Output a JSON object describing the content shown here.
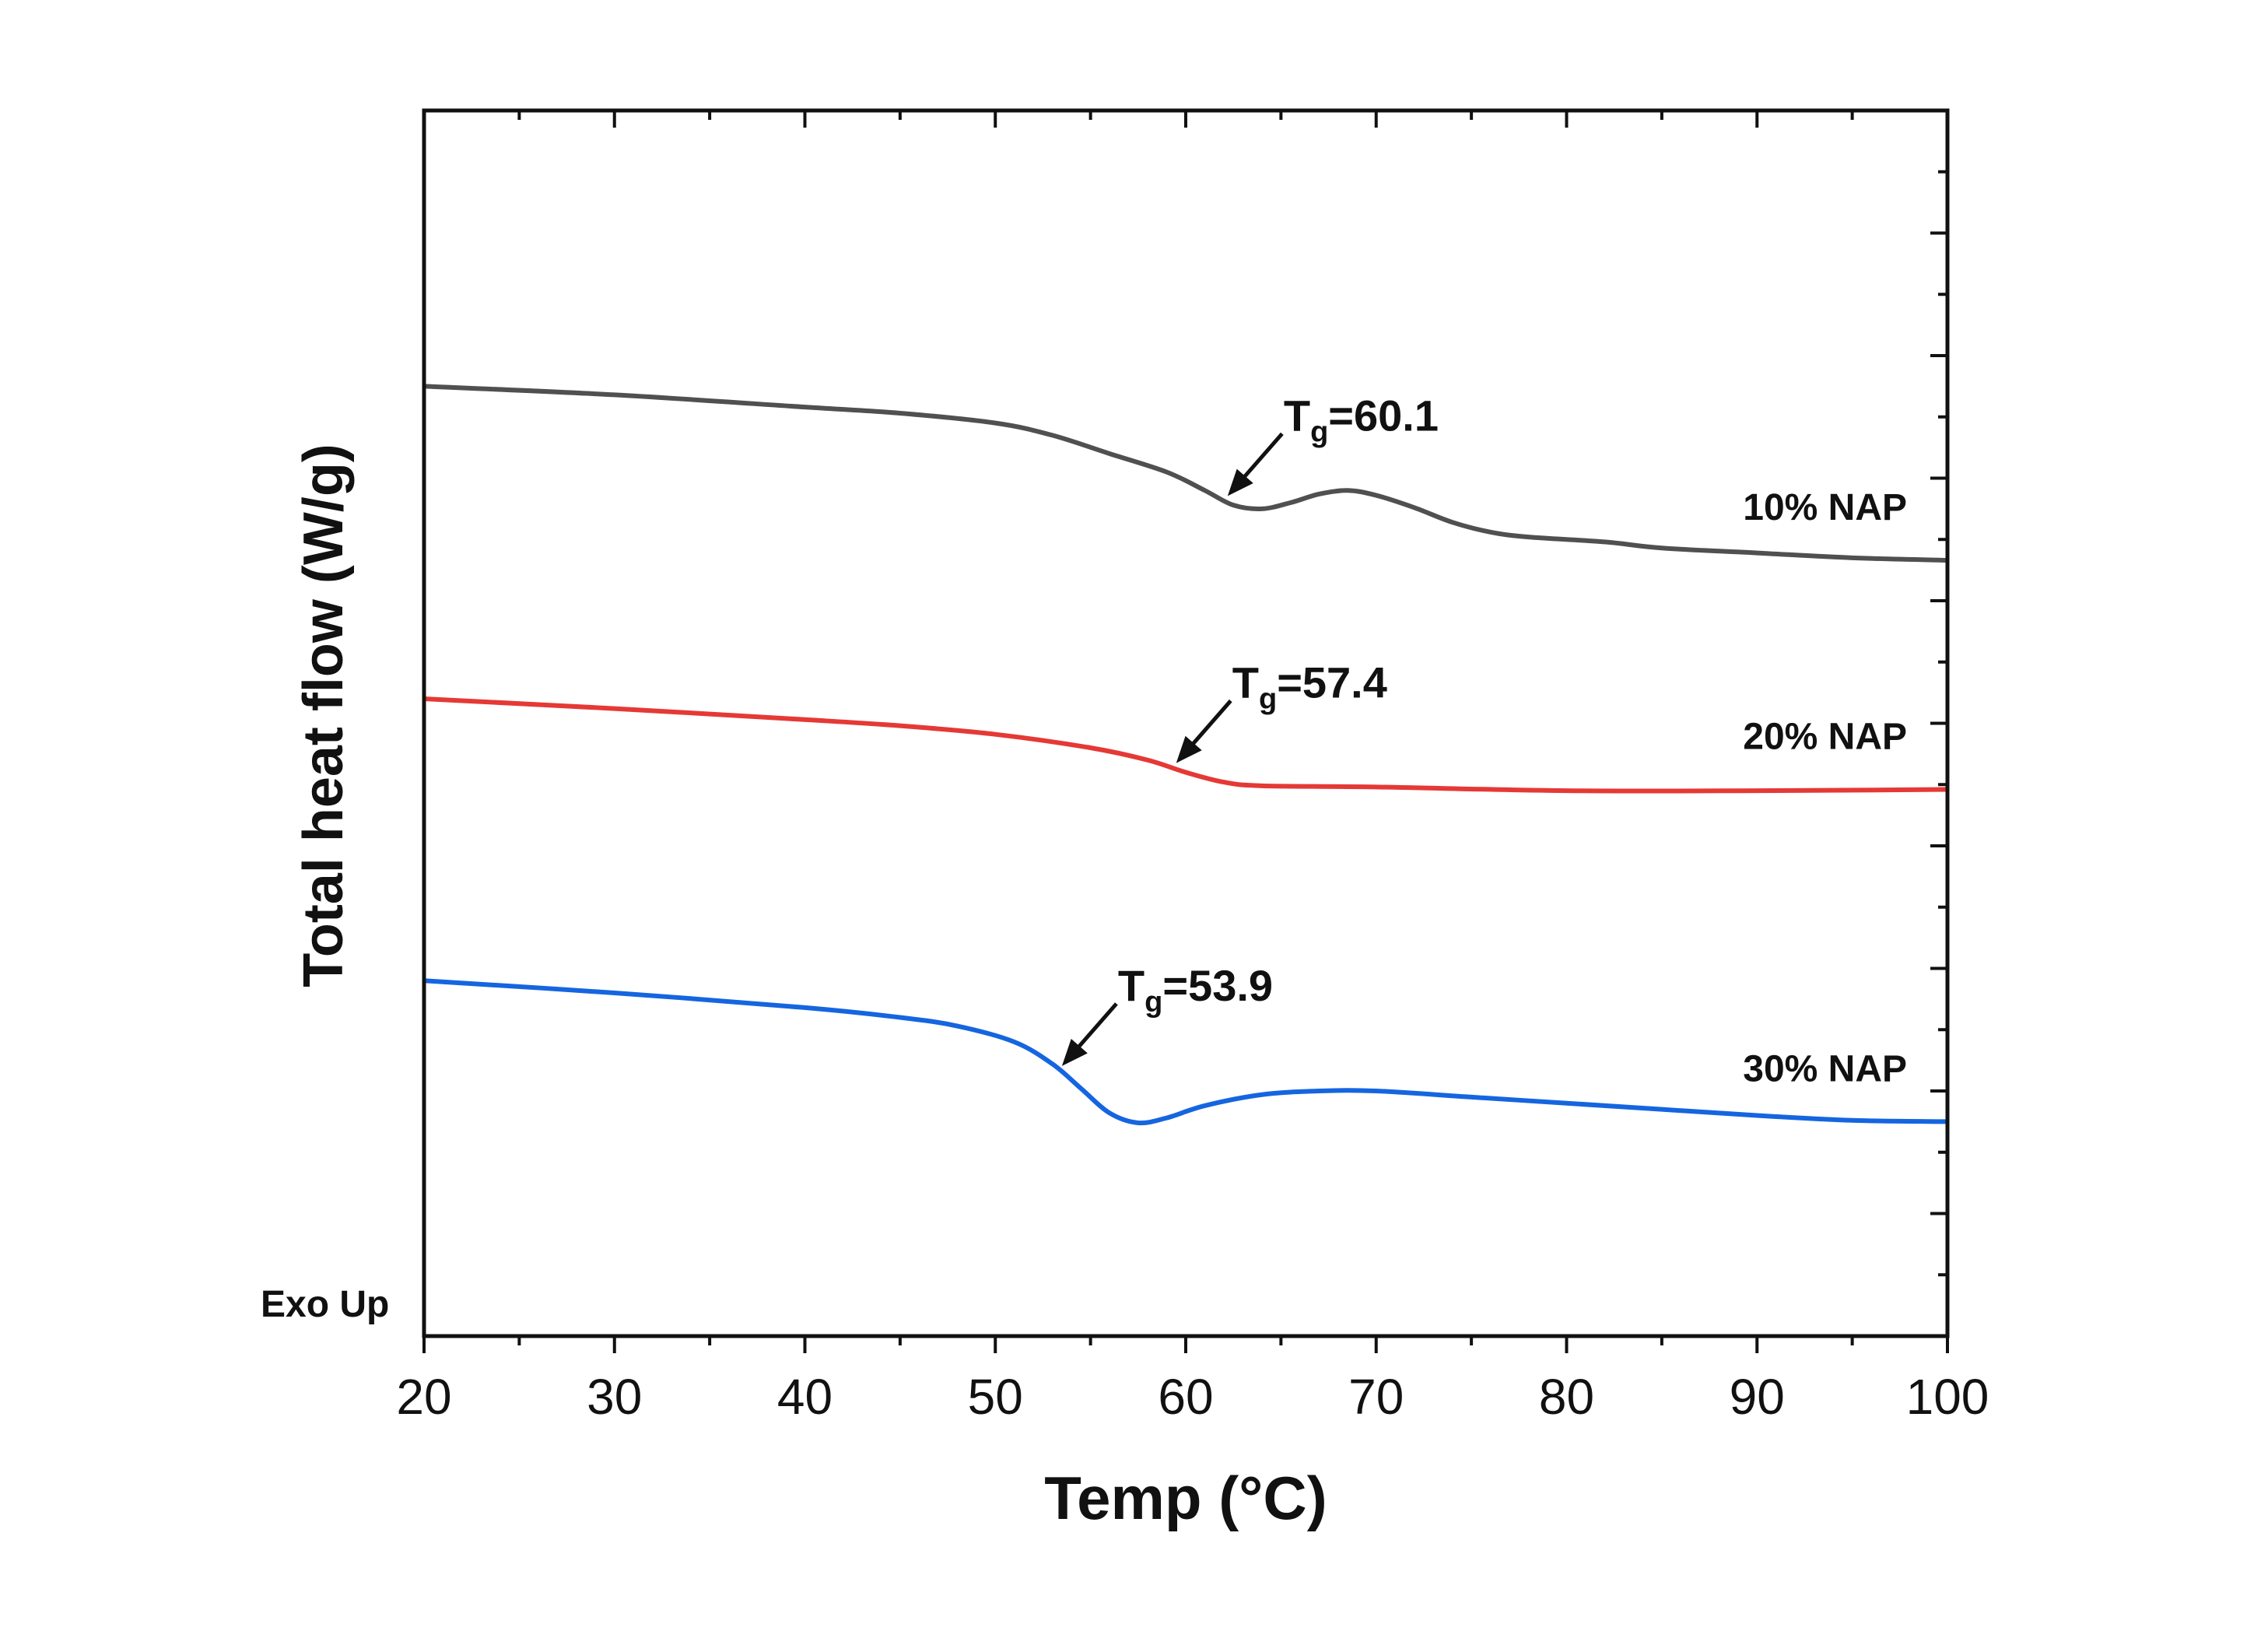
{
  "chart_data": {
    "type": "line",
    "title": "",
    "xlabel": "Temp (°C)",
    "ylabel": "Total heat flow (W/g)",
    "xlim": [
      20,
      100
    ],
    "x_ticks": [
      "20",
      "30",
      "40",
      "50",
      "60",
      "70",
      "80",
      "90",
      "100"
    ],
    "ylim": [
      0,
      10
    ],
    "y_tick_labels_shown": false,
    "corner_note": "Exo Up",
    "series": [
      {
        "name": "10% NAP",
        "color": "#505050",
        "tg_label": "T",
        "tg_sub": "g",
        "tg_value": "=60.1",
        "tg_x": 62.2,
        "points": [
          [
            20,
            7.75
          ],
          [
            30,
            7.68
          ],
          [
            40,
            7.58
          ],
          [
            45,
            7.53
          ],
          [
            50,
            7.45
          ],
          [
            53,
            7.35
          ],
          [
            56,
            7.2
          ],
          [
            59,
            7.05
          ],
          [
            61,
            6.9
          ],
          [
            62.5,
            6.78
          ],
          [
            64,
            6.75
          ],
          [
            65.5,
            6.8
          ],
          [
            67,
            6.87
          ],
          [
            68.5,
            6.9
          ],
          [
            70,
            6.86
          ],
          [
            72,
            6.76
          ],
          [
            74,
            6.64
          ],
          [
            76,
            6.56
          ],
          [
            78,
            6.52
          ],
          [
            82,
            6.48
          ],
          [
            85,
            6.43
          ],
          [
            90,
            6.39
          ],
          [
            95,
            6.35
          ],
          [
            100,
            6.33
          ]
        ]
      },
      {
        "name": "20% NAP",
        "color": "#e53935",
        "tg_label": "T",
        "tg_sub": "g",
        "tg_value": "=57.4",
        "tg_x": 59.5,
        "points": [
          [
            20,
            5.2
          ],
          [
            30,
            5.12
          ],
          [
            40,
            5.03
          ],
          [
            45,
            4.98
          ],
          [
            50,
            4.91
          ],
          [
            55,
            4.8
          ],
          [
            58,
            4.7
          ],
          [
            60,
            4.6
          ],
          [
            62,
            4.52
          ],
          [
            64,
            4.49
          ],
          [
            70,
            4.48
          ],
          [
            80,
            4.45
          ],
          [
            90,
            4.45
          ],
          [
            100,
            4.46
          ]
        ]
      },
      {
        "name": "30% NAP",
        "color": "#1565e0",
        "tg_label": "T",
        "tg_sub": "g",
        "tg_value": "=53.9",
        "tg_x": 53.5,
        "points": [
          [
            20,
            2.9
          ],
          [
            30,
            2.8
          ],
          [
            40,
            2.68
          ],
          [
            45,
            2.6
          ],
          [
            48,
            2.53
          ],
          [
            51,
            2.4
          ],
          [
            53,
            2.22
          ],
          [
            54.5,
            2.02
          ],
          [
            56,
            1.82
          ],
          [
            57.5,
            1.74
          ],
          [
            59,
            1.78
          ],
          [
            61,
            1.88
          ],
          [
            64,
            1.97
          ],
          [
            67,
            2.0
          ],
          [
            70,
            2.0
          ],
          [
            75,
            1.95
          ],
          [
            80,
            1.9
          ],
          [
            85,
            1.85
          ],
          [
            90,
            1.8
          ],
          [
            95,
            1.76
          ],
          [
            100,
            1.75
          ]
        ]
      }
    ]
  }
}
